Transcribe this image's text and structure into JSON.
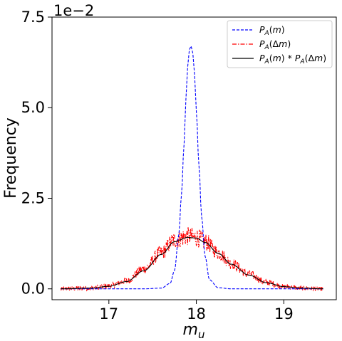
{
  "chart_data": {
    "type": "line",
    "xlabel": "m_u",
    "ylabel": "Frequency",
    "y_offset_text": "1e−2",
    "xlim": [
      16.35,
      19.6
    ],
    "ylim": [
      -0.3,
      7.5
    ],
    "x_ticks": [
      17,
      18,
      19
    ],
    "x_tick_labels": [
      "17",
      "18",
      "19"
    ],
    "y_ticks": [
      0.0,
      2.5,
      5.0,
      7.5
    ],
    "y_tick_labels": [
      "0.0",
      "2.5",
      "5.0",
      "7.5"
    ],
    "grid": false,
    "legend_position": "top-right",
    "series": [
      {
        "name": "P_A(m)",
        "style": "dashed",
        "color": "#0000ff",
        "x": [
          16.45,
          17.4,
          17.6,
          17.7,
          17.75,
          17.8,
          17.83,
          17.86,
          17.88,
          17.9,
          17.92,
          17.94,
          17.96,
          17.98,
          18.0,
          18.03,
          18.06,
          18.1,
          18.15,
          18.25,
          18.4,
          19.45
        ],
        "y": [
          0.0,
          0.0,
          0.02,
          0.15,
          0.5,
          1.5,
          2.6,
          4.0,
          5.2,
          6.1,
          6.6,
          6.7,
          6.5,
          5.9,
          4.9,
          3.4,
          2.0,
          0.9,
          0.25,
          0.03,
          0.0,
          0.0
        ]
      },
      {
        "name": "P_A(Δm)",
        "style": "dashdot",
        "color": "#ff0000",
        "noisy": true,
        "x": [
          16.45,
          16.8,
          17.0,
          17.2,
          17.4,
          17.6,
          17.75,
          17.9,
          18.0,
          18.1,
          18.25,
          18.4,
          18.6,
          18.8,
          19.0,
          19.2,
          19.45
        ],
        "y": [
          0.0,
          0.02,
          0.08,
          0.22,
          0.55,
          1.0,
          1.35,
          1.45,
          1.42,
          1.3,
          1.0,
          0.7,
          0.4,
          0.18,
          0.06,
          0.02,
          0.0
        ]
      },
      {
        "name": "P_A(m) * P_A(Δm)",
        "style": "solid",
        "color": "#000000",
        "x": [
          16.45,
          16.8,
          17.0,
          17.2,
          17.4,
          17.6,
          17.75,
          17.9,
          18.0,
          18.1,
          18.25,
          18.4,
          18.6,
          18.8,
          19.0,
          19.2,
          19.45
        ],
        "y": [
          0.0,
          0.02,
          0.07,
          0.2,
          0.5,
          0.95,
          1.3,
          1.42,
          1.4,
          1.28,
          0.98,
          0.68,
          0.38,
          0.17,
          0.06,
          0.02,
          0.0
        ]
      }
    ]
  }
}
